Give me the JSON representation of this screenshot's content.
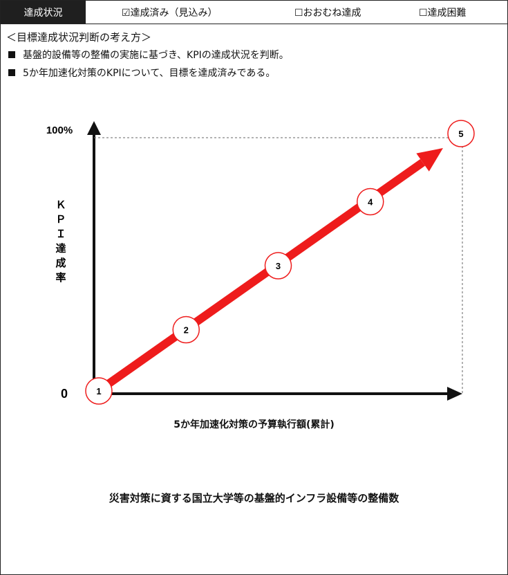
{
  "status": {
    "label": "達成状況",
    "options": [
      "☑達成済み（見込み）",
      "☐おおむね達成",
      "☐達成困難"
    ]
  },
  "heading": "＜目標達成状況判断の考え方＞",
  "bullets": [
    "基盤的設備等の整備の実施に基づき、KPIの達成状況を判断。",
    "5か年加速化対策のKPIについて、目標を達成済みである。"
  ],
  "chart_data": {
    "type": "line",
    "title": "災害対策に資する国立大学等の基盤的インフラ設備等の整備数",
    "xlabel": "5か年加速化対策の予算執行額(累計)",
    "ylabel": "ＫＰＩ達成率",
    "y_ticks": [
      "0",
      "100%"
    ],
    "ylim": [
      0,
      100
    ],
    "points": [
      {
        "label": "1",
        "x": 0,
        "y": 0
      },
      {
        "label": "2",
        "x": 25,
        "y": 25
      },
      {
        "label": "3",
        "x": 50,
        "y": 50
      },
      {
        "label": "4",
        "x": 75,
        "y": 75
      },
      {
        "label": "5",
        "x": 100,
        "y": 100
      }
    ],
    "arrow_color": "#ee1c1c",
    "target_line": "dashed"
  }
}
